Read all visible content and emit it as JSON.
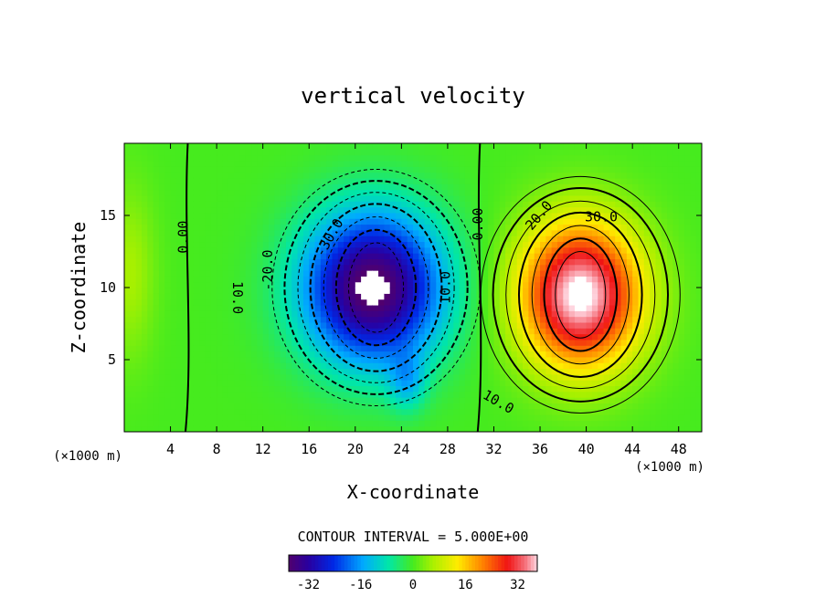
{
  "chart_data": {
    "type": "heatmap",
    "title": "vertical velocity",
    "xlabel": "X-coordinate",
    "ylabel": "Z-coordinate",
    "x_unit_left": "(×1000 m)",
    "x_unit_right": "(×1000 m)",
    "xlim": [
      0,
      50
    ],
    "ylim": [
      0,
      20
    ],
    "x_ticks": [
      4,
      8,
      12,
      16,
      20,
      24,
      28,
      32,
      36,
      40,
      44,
      48
    ],
    "y_ticks": [
      5,
      10,
      15
    ],
    "contour_interval_text": "CONTOUR INTERVAL = 5.000E+00",
    "contour_interval": 5,
    "contour_labels": [
      {
        "text": "0.00",
        "x": 5.5,
        "y": 13.5,
        "rotate": -90
      },
      {
        "text": "10.0",
        "x": 9.4,
        "y": 9.3,
        "rotate": 90
      },
      {
        "text": "-20.0",
        "x": 12.8,
        "y": 11.2,
        "rotate": -90
      },
      {
        "text": "-30.0",
        "x": 18.1,
        "y": 13.3,
        "rotate": -60
      },
      {
        "text": "10.0",
        "x": 28.2,
        "y": 10.0,
        "rotate": -90
      },
      {
        "text": "0.00",
        "x": 31.0,
        "y": 14.4,
        "rotate": -90
      },
      {
        "text": "20.0",
        "x": 36.2,
        "y": 14.8,
        "rotate": -50
      },
      {
        "text": "30.0",
        "x": 41.3,
        "y": 14.6,
        "rotate": 0
      },
      {
        "text": "10.0",
        "x": 32.2,
        "y": 1.8,
        "rotate": 30
      }
    ],
    "colorbar": {
      "min": -38,
      "max": 38,
      "ticks": [
        -32,
        -16,
        0,
        16,
        32
      ],
      "tick_labels": [
        "-32",
        "-16",
        "0",
        "16",
        "32"
      ]
    },
    "fields": {
      "downdraft": {
        "x": 21.5,
        "z": 10.0,
        "peak": -40
      },
      "updraft": {
        "x": 39.5,
        "z": 9.5,
        "peak": 40
      },
      "white_region_threshold": 38
    }
  }
}
